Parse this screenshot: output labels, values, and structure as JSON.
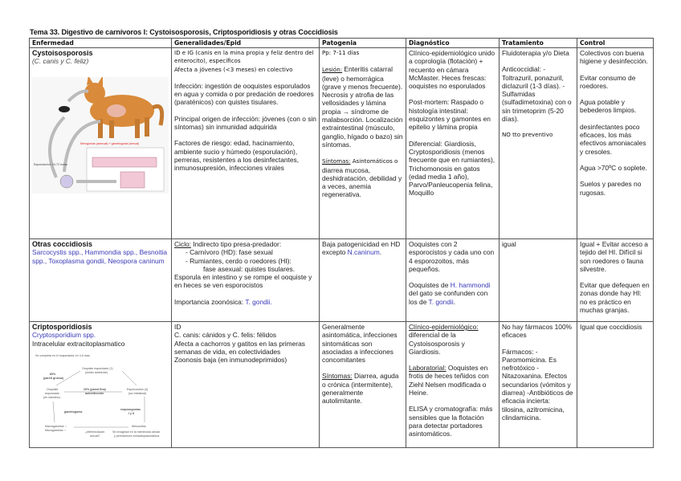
{
  "title": "Tema 33. Digestivo de carnívoros I: Cystoisosporosis, Criptosporidiosis y otras Coccidiosis",
  "headers": [
    "Enfermedad",
    "Generalidades/Epid",
    "Patogenia",
    "Diagnóstico",
    "Tratamiento",
    "Control"
  ],
  "row1": {
    "name": "Cystoisosporosis",
    "species": "(C. canis y C. feliz)",
    "diagram": {
      "red_label": "Merogonias (asexual) + gametogonia (sexual)",
      "esporulacion": "Esporulación: 24-72 horas"
    },
    "gen_l1": "ID e IG (canis en la mina propia y feliz dentro del enterocito), específicos",
    "gen_l2": "Afecta a jóvenes (<3 meses) en colectivo",
    "gen_p1": "Infección: ingestión de ooquistes esporulados en agua y comida o por predación de roedores (paraténicos) con quistes tisulares.",
    "gen_p2": "Principal origen de infección: jóvenes (con o sin síntomas) sin inmunidad adquirida",
    "gen_p3": "Factores de riesgo: edad, hacinamiento, ambiente sucio y húmedo (esporulación), perreras, resistentes a los desinfectantes, inmunosupresión, infecciones virales",
    "pat_pp": "Pp: 7-11 días",
    "pat_lesion_label": "Lesión:",
    "pat_lesion": " Enteritis catarral (leve) o hemorrágica (grave y menos frecuente). Necrosis y atrofia de las vellosidades y lámina propia → síndrome de malabsorción. Localización extraintestinal (músculo, ganglio, hígado o bazo) sin síntomas.",
    "pat_sint_label": "Síntomas:",
    "pat_sint_bold": " Asintomáticos o",
    "pat_sint": "diarrea mucosa, deshidratación, debilidad y a veces, anemia regenerativa.",
    "diag_p1": "Clínico-epidemiológico unido a coprología (flotación) + recuento en cámara McMaster. Heces frescas: ooquistes no esporulados",
    "diag_p2": "Post-mortem: Raspado o histología intestinal: esquizontes y gamontes en epitelio y lámina propia",
    "diag_p3": "Diferencial: Giardiosis, Cryptosporidiosis (menos frecuente que en rumiantes), Trichomonosis en gatos (edad media 1 año), Parvo/Panleucopenia felina, Moquillo",
    "trat_p1": "Fluidoterapia y/o Dieta",
    "trat_p2": "Anticoccidial: -Toltrazuril, ponazuril, diclazuril (1-3 días). -Sulfamidas (sulfadimetoxina) con o sin trimetoprim (5-20 días).",
    "trat_p3": "NO tto preventivo",
    "ctrl": [
      "Colectivos con buena higiene y desinfección.",
      "Evitar consumo de roedores.",
      "Agua potable y bebederos limpios.",
      "desinfectantes poco eficaces, los más efectivos amoniacales y cresoles.",
      "Agua >70ºC o soplete.",
      "Suelos y paredes no rugosas."
    ]
  },
  "row2": {
    "name": "Otras coccidiosis",
    "species": "Sarcocystis spp., Hammondia spp., Besnoitia spp., Toxoplasma gondii, Neospora caninum",
    "gen_ciclo_label": "Ciclo:",
    "gen_ciclo": " Indirecto tipo presa-predador:",
    "gen_b1": "-   Carnívoro (HD): fase sexual",
    "gen_b2": "-   Rumiantes, cerdo o roedores (HI):",
    "gen_b2b": "fase asexual: quistes tisulares.",
    "gen_p2": "Esporula en intestino y se rompe el ooquiste y en heces se ven esporocistos",
    "gen_zoo": "Importancia zoonósica: ",
    "gen_zoo_blue": "T. gondii.",
    "pat": "Baja patogenicidad en HD excepto ",
    "pat_blue": "N.caninum",
    "pat_end": ".",
    "diag_p1": "Ooquistes con 2 esporocistos y cada uno con 4 esporozoitos, más pequeños.",
    "diag_p2a": "Ooquistes de ",
    "diag_p2b": "H. hammondi",
    "diag_p2c": " del gato se confunden con los de ",
    "diag_p2d": "T. gondii",
    "diag_p2e": ".",
    "trat": "igual",
    "ctrl_p1": "Igual + Evitar acceso a tejido del HI. Difícil si son roedores o fauna silvestre.",
    "ctrl_p2": "Evitar que defequen en zonas donde hay HI: no es práctico en muchas granjas."
  },
  "row3": {
    "name": "Criptosporidiosis",
    "species": "Cryptosporidium spp.",
    "sub": "Intracelular extracitoplasmatico",
    "diagram": {
      "note": "Se completa en el hospedador en 3-6 días.",
      "n1": "Ooquiste esporulado (1)",
      "n1b": "(medio ambiente)",
      "p80": "80%",
      "p80b": "(pared gruesa)",
      "p20": "20% (pared fina)",
      "p20b": "autoinfección",
      "n2": "Esporozoitos (4)",
      "n2b": "(luz intestinal)",
      "n3": "Ooquiste",
      "n3b": "esporulado",
      "n3c": "(en intestino)",
      "esq": "esquizogonias",
      "esqb": "I y II",
      "gam": "gametogonia",
      "macro": "Macrogametos ♀",
      "micro": "Microgametos ♂",
      "mero": "Merozoitos",
      "dif": "¿diferenciación",
      "difb": "sexual?",
      "inv": "Se invaginan en la membrana celular",
      "invb": "y permanecen extracitoplasmáticos"
    },
    "gen": [
      "ID",
      "C. canis: cánidos y C. felis: félidos",
      "Afecta a cachorros y gatitos en las primeras semanas de vida, en colectividades",
      "Zoonosis baja (en inmunodeprimidos)"
    ],
    "pat_p1": "Generalmente asintomática, infecciones sintomáticas son asociadas a infecciones concomitantes",
    "pat_sint_label": "Síntomas:",
    "pat_sint": " Diarrea, aguda o crónica (intermitente), generalmente autolimitante.",
    "diag_l1": "Clínico-epidemiológico:",
    "diag_p1": " diferencial de la Cystoisosporosis y Giardiosis.",
    "diag_l2": "Laboratorial:",
    "diag_p2": " Ooquistes en frotis de heces teñidos con Ziehl Nelsen modificada o Heine.",
    "diag_p3": "ELISA y cromatografía: más sensibles que la flotación para detectar portadores asintomáticos.",
    "trat_p1": "No hay fármacos 100% eficaces",
    "trat_p2": "Fármacos: -Paromomicina. Es nefrotóxico -Nitazoxanina. Efectos secundarios (vómitos y diarrea) -Antibióticos de eficacia incierta: tilosina, azitromicina, clindamicina.",
    "ctrl": "Igual que coccidiosis"
  },
  "colors": {
    "blue_species": "#3a3ab8",
    "red_label": "#e02020",
    "border": "#555555"
  }
}
